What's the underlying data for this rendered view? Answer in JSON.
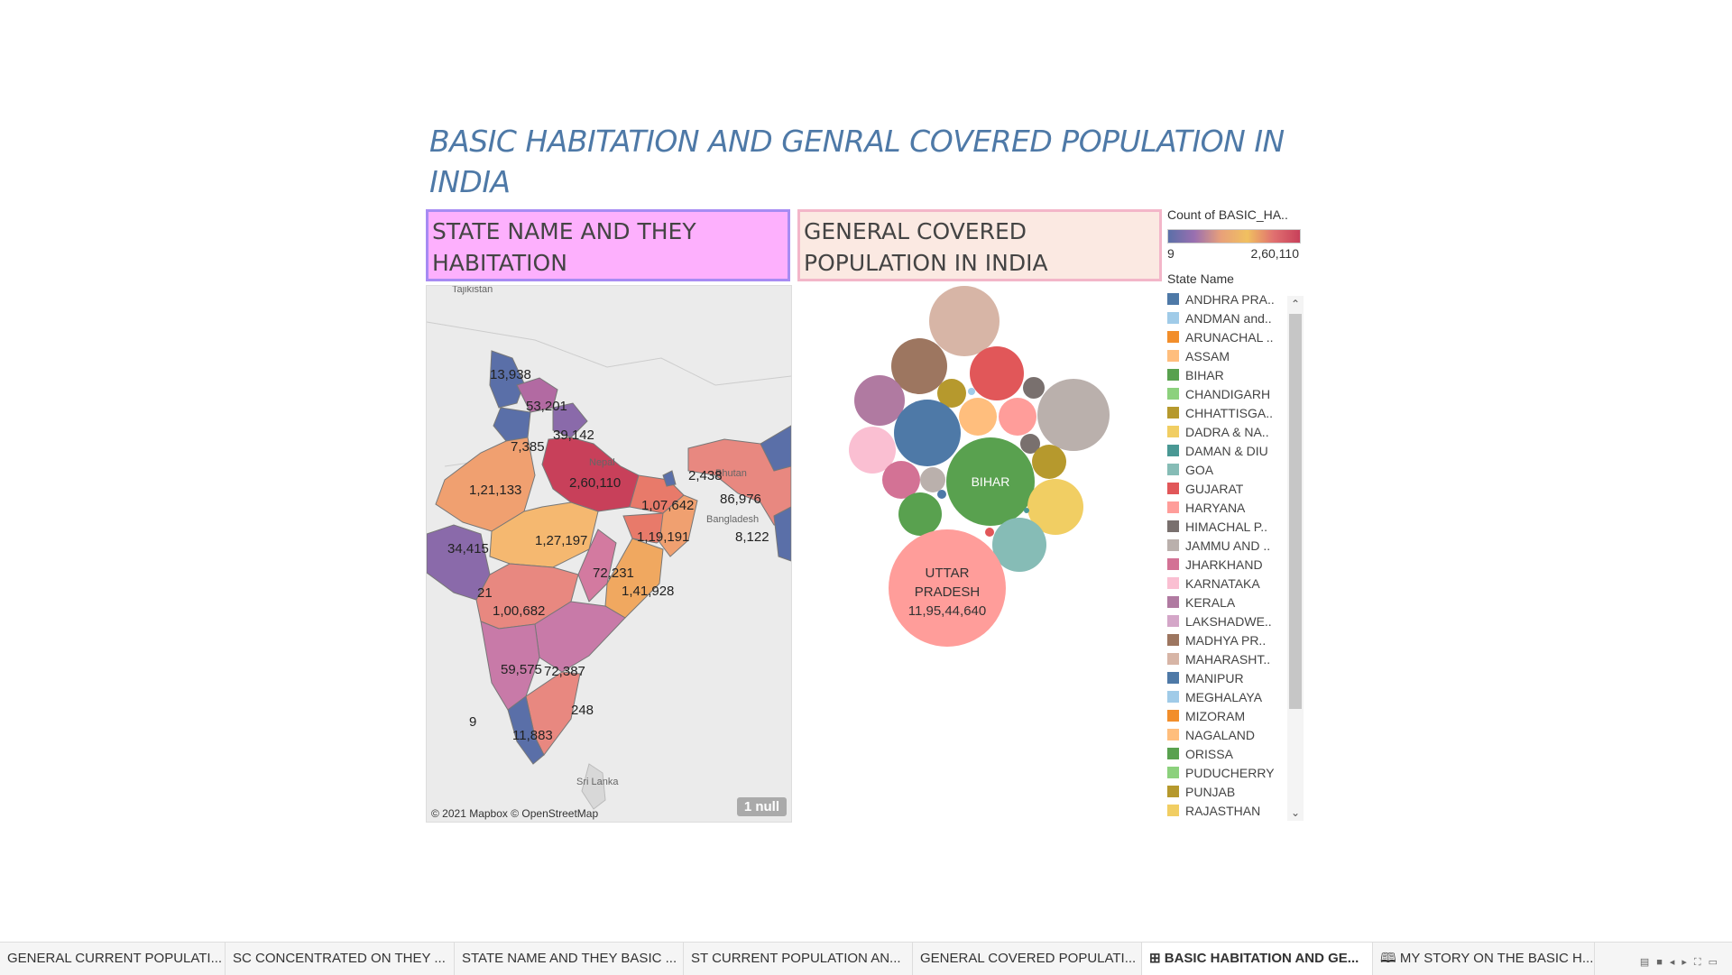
{
  "title": "BASIC HABITATION AND GENRAL COVERED POPULATION IN INDIA",
  "panels": {
    "left_header": "STATE NAME AND THEY HABITATION",
    "right_header": "GENERAL COVERED POPULATION IN INDIA"
  },
  "map": {
    "labels": [
      "13,938",
      "53,201",
      "39,142",
      "7,385",
      "2,60,110",
      "2,438",
      "1,21,133",
      "1,07,642",
      "86,976",
      "1,27,197",
      "1,19,191",
      "8,122",
      "34,415",
      "72,231",
      "1,41,928",
      "21",
      "1,00,682",
      "59,575",
      "72,387",
      "248",
      "9",
      "11,883"
    ],
    "geo_labels": [
      "Tajikistan",
      "Nepal",
      "Bhutan",
      "Bangladesh",
      "Sri Lanka"
    ],
    "copyright": "© 2021 Mapbox © OpenStreetMap",
    "null_badge": "1 null"
  },
  "bubbles": {
    "bihar_label": "BIHAR",
    "up_label_line1": "UTTAR",
    "up_label_line2": "PRADESH",
    "up_value": "11,95,44,640"
  },
  "legend": {
    "color_title": "Count of BASIC_HA..",
    "min": "9",
    "max": "2,60,110",
    "state_title": "State Name",
    "items": [
      {
        "label": "ANDHRA PRA..",
        "color": "#4e79a7"
      },
      {
        "label": "ANDMAN and..",
        "color": "#a0cbe8"
      },
      {
        "label": "ARUNACHAL ..",
        "color": "#f28e2b"
      },
      {
        "label": "ASSAM",
        "color": "#ffbe7d"
      },
      {
        "label": "BIHAR",
        "color": "#59a14f"
      },
      {
        "label": "CHANDIGARH",
        "color": "#8cd17d"
      },
      {
        "label": "CHHATTISGA..",
        "color": "#b6992d"
      },
      {
        "label": "DADRA & NA..",
        "color": "#f1ce63"
      },
      {
        "label": "DAMAN & DIU",
        "color": "#499894"
      },
      {
        "label": "GOA",
        "color": "#86bcb6"
      },
      {
        "label": "GUJARAT",
        "color": "#e15759"
      },
      {
        "label": "HARYANA",
        "color": "#ff9d9a"
      },
      {
        "label": "HIMACHAL P..",
        "color": "#79706e"
      },
      {
        "label": "JAMMU AND ..",
        "color": "#bab0ac"
      },
      {
        "label": "JHARKHAND",
        "color": "#d37295"
      },
      {
        "label": "KARNATAKA",
        "color": "#fabfd2"
      },
      {
        "label": "KERALA",
        "color": "#b07aa1"
      },
      {
        "label": "LAKSHADWE..",
        "color": "#d4a6c8"
      },
      {
        "label": "MADHYA PR..",
        "color": "#9d7660"
      },
      {
        "label": "MAHARASHT..",
        "color": "#d7b5a6"
      },
      {
        "label": "MANIPUR",
        "color": "#4e79a7"
      },
      {
        "label": "MEGHALAYA",
        "color": "#a0cbe8"
      },
      {
        "label": "MIZORAM",
        "color": "#f28e2b"
      },
      {
        "label": "NAGALAND",
        "color": "#ffbe7d"
      },
      {
        "label": "ORISSA",
        "color": "#59a14f"
      },
      {
        "label": "PUDUCHERRY",
        "color": "#8cd17d"
      },
      {
        "label": "PUNJAB",
        "color": "#b6992d"
      },
      {
        "label": "RAJASTHAN",
        "color": "#f1ce63"
      }
    ]
  },
  "tabs": [
    {
      "label": "GENERAL CURRENT POPULATI..."
    },
    {
      "label": "SC CONCENTRATED ON THEY ..."
    },
    {
      "label": "STATE NAME AND THEY BASIC ..."
    },
    {
      "label": "ST CURRENT POPULATION AN..."
    },
    {
      "label": "GENERAL COVERED POPULATI..."
    },
    {
      "label": "⊞ BASIC HABITATION AND GE..."
    },
    {
      "label": "🕮 MY STORY ON THE BASIC H..."
    }
  ]
}
